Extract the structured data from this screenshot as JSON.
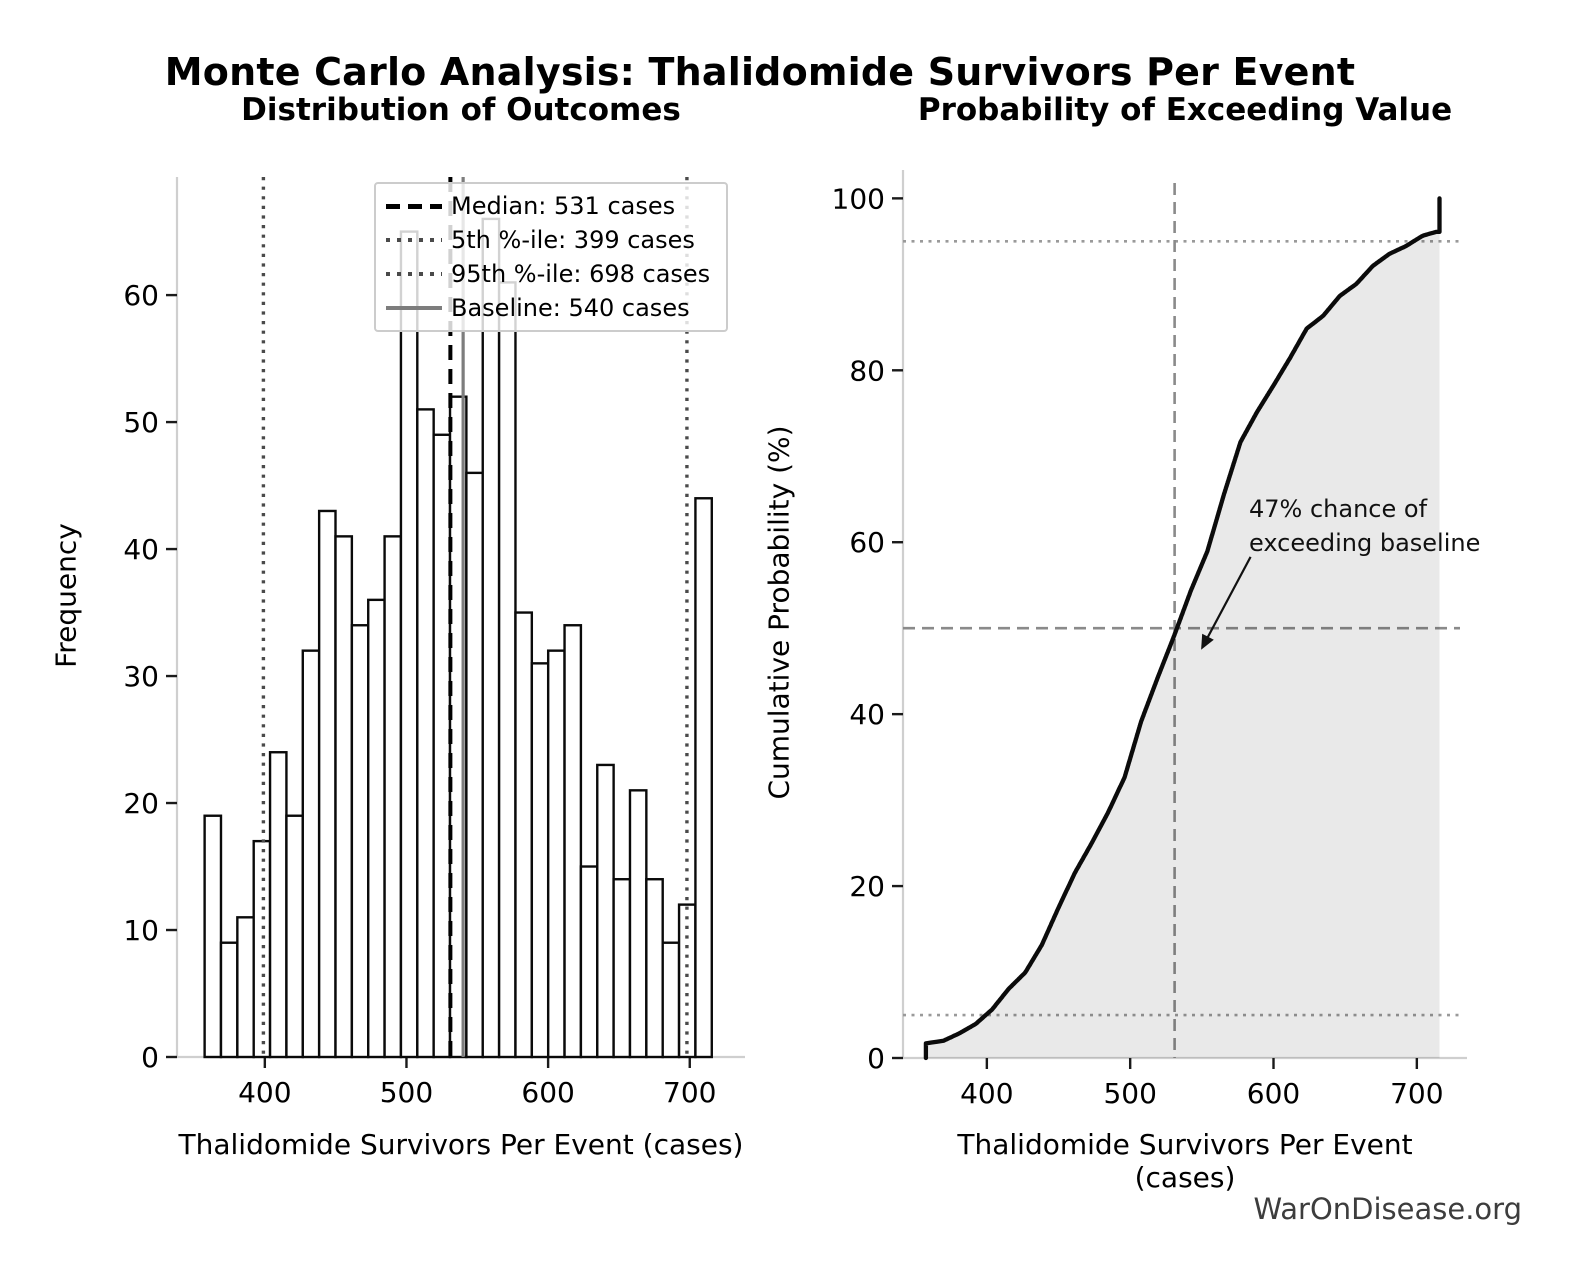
{
  "figure": {
    "title": "Monte Carlo Analysis: Thalidomide Survivors Per Event",
    "watermark": "WarOnDisease.org"
  },
  "colors": {
    "bar_fill": "#ffffff",
    "bar_edge": "#0a0a0a",
    "median_line": "#000000",
    "percentile_line": "#4a4a4a",
    "baseline_line": "#7d7d7d",
    "curve": "#0b0b0b",
    "fill_under_curve": "rgba(0,0,0,0.085)",
    "ref_dashed": "#8a8a8a",
    "ref_dotted": "#9a9a9a",
    "spine": "#cfcfcf",
    "tick": "#1a1a1a",
    "watermark": "#3d3d3d"
  },
  "chart_data": [
    {
      "type": "bar",
      "subtype": "histogram",
      "title": "Distribution of Outcomes",
      "xlabel": "Thalidomide Survivors Per Event (cases)",
      "ylabel": "Frequency",
      "bin_start": 357.5,
      "bin_width": 11.55,
      "counts": [
        19,
        9,
        11,
        17,
        24,
        19,
        32,
        43,
        41,
        34,
        36,
        41,
        65,
        51,
        49,
        52,
        46,
        66,
        61,
        35,
        31,
        32,
        34,
        15,
        23,
        14,
        21,
        14,
        9,
        12,
        44
      ],
      "xlim": [
        338,
        739
      ],
      "ylim": [
        0,
        69.3
      ],
      "xticks": [
        400,
        500,
        600,
        700
      ],
      "yticks": [
        0,
        10,
        20,
        30,
        40,
        50,
        60
      ],
      "grid": false,
      "markers": {
        "median": 531,
        "p5": 399,
        "p95": 698,
        "baseline": 540
      },
      "legend_position": "upper-center",
      "legend": [
        {
          "label": "Median: 531 cases",
          "style": "dashed-black"
        },
        {
          "label": "5th %-ile: 399 cases",
          "style": "dotted-gray"
        },
        {
          "label": "95th %-ile: 698 cases",
          "style": "dotted-gray"
        },
        {
          "label": "Baseline: 540 cases",
          "style": "solid-gray"
        }
      ]
    },
    {
      "type": "line",
      "subtype": "ecdf",
      "title": "Probability of Exceeding Value",
      "xlabel": "Thalidomide Survivors Per Event (cases)",
      "ylabel": "Cumulative Probability (%)",
      "xlim": [
        341.5,
        735
      ],
      "ylim": [
        0,
        103.3
      ],
      "xticks": [
        400,
        500,
        600,
        700
      ],
      "yticks": [
        0,
        20,
        40,
        60,
        80,
        100
      ],
      "grid": false,
      "x_min": 357.5,
      "x_max": 715.8,
      "min_clump": 17,
      "max_clump": 39,
      "ref_lines": {
        "h_dashed": 50,
        "h_dotted": [
          5,
          95
        ],
        "v_dashed": 531
      },
      "exceed_probability_pct": 47,
      "annotation": {
        "line1": "47% chance of",
        "line2": "exceeding baseline",
        "text_xy": [
          583.5,
          65.6
        ],
        "arrow_from_xy": [
          584,
          58.3
        ],
        "arrow_to_xy": [
          549.5,
          47.5
        ]
      }
    }
  ]
}
